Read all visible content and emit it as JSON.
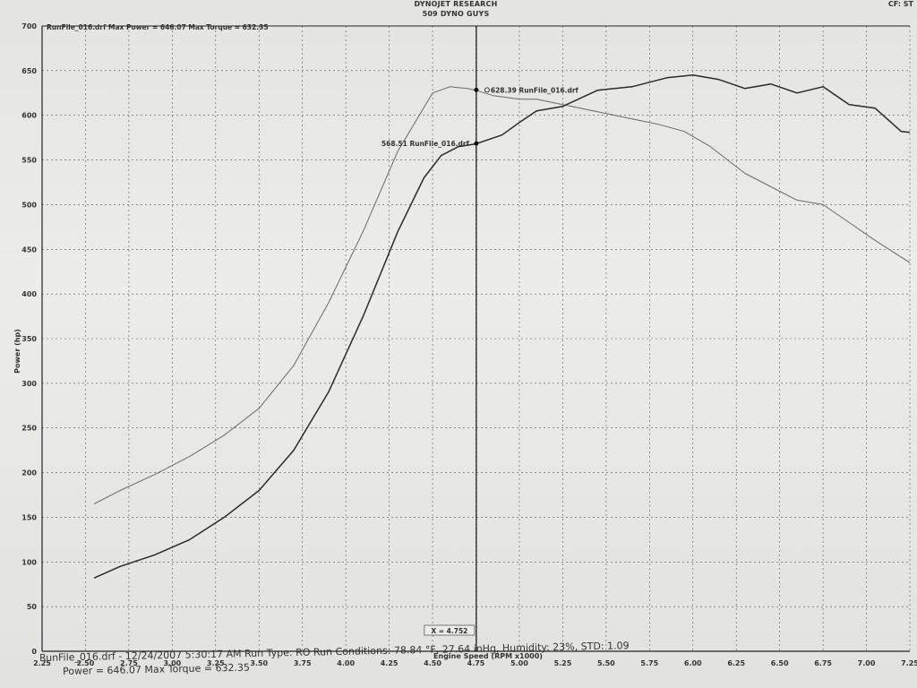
{
  "header": {
    "company": "DYNOJET RESEARCH",
    "shop": "509 DYNO GUYS",
    "cf_label": "CF: ST"
  },
  "chart_data": {
    "type": "line",
    "title": "RunFile_016.drf Max Power = 646.07    Max Torque = 632.35",
    "xlabel": "Engine Speed (RPM x1000)",
    "ylabel": "Power (hp)",
    "xlim": [
      2.25,
      7.25
    ],
    "ylim": [
      0,
      700
    ],
    "x_ticks": [
      "2.25",
      "2.50",
      "2.75",
      "3.00",
      "3.25",
      "3.50",
      "3.75",
      "4.00",
      "4.25",
      "4.50",
      "4.75",
      "5.00",
      "5.25",
      "5.50",
      "5.75",
      "6.00",
      "6.25",
      "6.50",
      "6.75",
      "7.00",
      "7.25"
    ],
    "y_ticks": [
      "0",
      "50",
      "100",
      "150",
      "200",
      "250",
      "300",
      "350",
      "400",
      "450",
      "500",
      "550",
      "600",
      "650",
      "700"
    ],
    "grid": true,
    "cursor": {
      "x": 4.752,
      "label": "X = 4.752"
    },
    "annotations": [
      {
        "text": "628.39 RunFile_016.drf",
        "series": "torque",
        "x": 4.752,
        "y": 628.39
      },
      {
        "text": "568.51 RunFile_016.drf",
        "series": "power",
        "x": 4.752,
        "y": 568.51
      }
    ],
    "series": [
      {
        "id": "torque",
        "color": "#6a6a6a",
        "x": [
          2.55,
          2.7,
          2.9,
          3.1,
          3.3,
          3.5,
          3.7,
          3.9,
          4.1,
          4.3,
          4.5,
          4.6,
          4.7,
          4.75,
          4.85,
          5.0,
          5.1,
          5.25,
          5.4,
          5.6,
          5.8,
          5.95,
          6.1,
          6.3,
          6.5,
          6.6,
          6.75,
          6.9,
          7.05,
          7.25
        ],
        "y": [
          165,
          180,
          198,
          218,
          242,
          272,
          320,
          390,
          470,
          560,
          625,
          632,
          630,
          628,
          622,
          618,
          618,
          612,
          606,
          598,
          590,
          582,
          565,
          535,
          515,
          505,
          500,
          480,
          460,
          435
        ]
      },
      {
        "id": "power",
        "color": "#2a2a2a",
        "x": [
          2.55,
          2.7,
          2.9,
          3.1,
          3.3,
          3.5,
          3.7,
          3.9,
          4.1,
          4.3,
          4.45,
          4.55,
          4.65,
          4.75,
          4.9,
          5.0,
          5.1,
          5.25,
          5.45,
          5.65,
          5.85,
          6.0,
          6.15,
          6.3,
          6.45,
          6.6,
          6.75,
          6.9,
          7.05,
          7.2,
          7.25
        ],
        "y": [
          82,
          95,
          108,
          125,
          150,
          180,
          225,
          290,
          375,
          470,
          530,
          555,
          565,
          568,
          578,
          592,
          605,
          610,
          628,
          632,
          642,
          645,
          640,
          630,
          635,
          625,
          632,
          612,
          608,
          582,
          581
        ]
      }
    ]
  },
  "footer": {
    "line1": "RunFile_016.drf - 12/24/2007 5:30:17 AM  Run Type: RO  Run Conditions: 78.84 °F, 27.64 inHg, Humidity: 23%, STD: 1.09",
    "line2": "Power = 646.07  Max Torque = 632.35"
  }
}
